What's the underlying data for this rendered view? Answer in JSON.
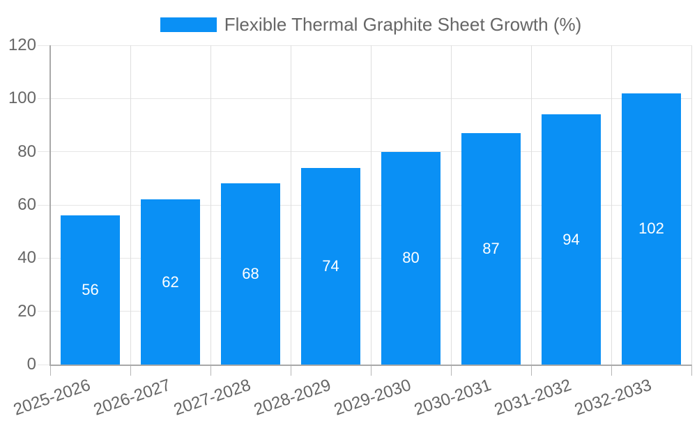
{
  "chart_data": {
    "type": "bar",
    "title": "",
    "legend": "Flexible Thermal Graphite Sheet Growth (%)",
    "legend_position": "top",
    "categories": [
      "2025-2026",
      "2026-2027",
      "2027-2028",
      "2028-2029",
      "2029-2030",
      "2030-2031",
      "2031-2032",
      "2032-2033"
    ],
    "series": [
      {
        "name": "Flexible Thermal Graphite Sheet Growth (%)",
        "values": [
          56,
          62,
          68,
          74,
          80,
          87,
          94,
          102
        ]
      }
    ],
    "xlabel": "",
    "ylabel": "",
    "ylim": [
      0,
      120
    ],
    "yticks": [
      0,
      20,
      40,
      60,
      80,
      100,
      120
    ],
    "grid": true,
    "value_labels_inside_bars": true,
    "colors": {
      "bar": "#0a90f5",
      "bar_value_label": "#ffffff",
      "axis_text": "#666666",
      "h_gridline": "#e6e6e6",
      "v_gridline": "#dedede",
      "axis_line": "#a8a8a8",
      "tick_mark": "#b5b5b5",
      "background": "#ffffff"
    }
  }
}
